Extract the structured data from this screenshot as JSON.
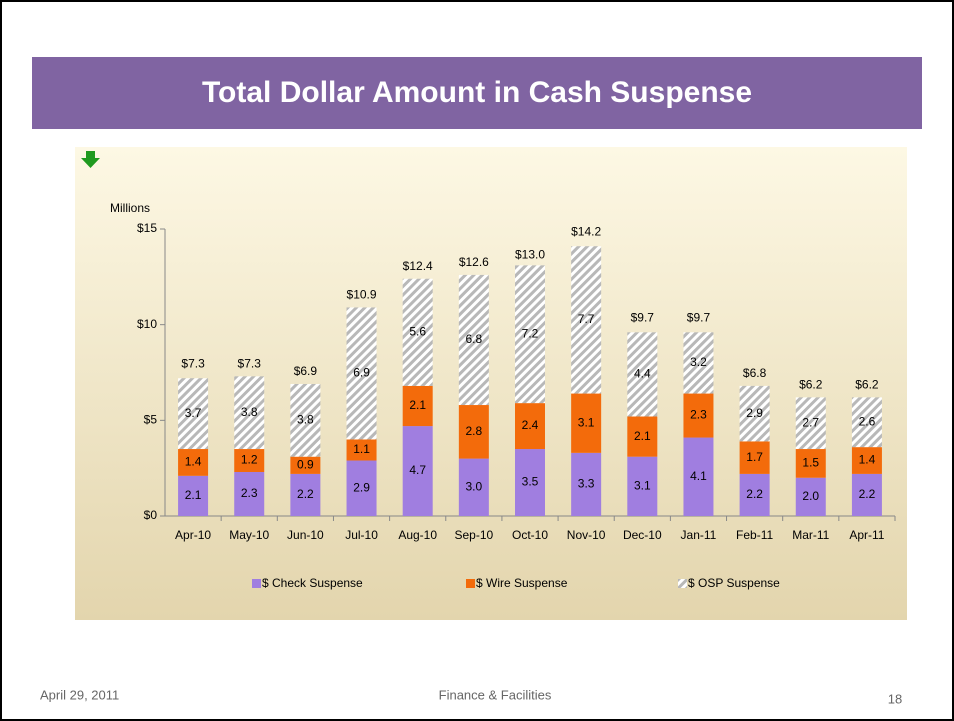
{
  "chart_data": {
    "type": "stacked-bar",
    "title": "Total Dollar Amount in Cash Suspense",
    "y_axis_label": "Millions",
    "categories": [
      "Apr-10",
      "May-10",
      "Jun-10",
      "Jul-10",
      "Aug-10",
      "Sep-10",
      "Oct-10",
      "Nov-10",
      "Dec-10",
      "Jan-11",
      "Feb-11",
      "Mar-11",
      "Apr-11"
    ],
    "series": [
      {
        "name": "$ Check Suspense",
        "color": "#a07ee0",
        "values": [
          2.1,
          2.3,
          2.2,
          2.9,
          4.7,
          3.0,
          3.5,
          3.3,
          3.1,
          4.1,
          2.2,
          2.0,
          2.2
        ],
        "value_labels": [
          "2.1",
          "2.3",
          "2.2",
          "2.9",
          "4.7",
          "3.0",
          "3.5",
          "3.3",
          "3.1",
          "4.1",
          "2.2",
          "2.0",
          "2.2"
        ]
      },
      {
        "name": "$ Wire Suspense",
        "color": "#f36b0b",
        "values": [
          1.4,
          1.2,
          0.9,
          1.1,
          2.1,
          2.8,
          2.4,
          3.1,
          2.1,
          2.3,
          1.7,
          1.5,
          1.4
        ],
        "value_labels": [
          "1.4",
          "1.2",
          "0.9",
          "1.1",
          "2.1",
          "2.8",
          "2.4",
          "3.1",
          "2.1",
          "2.3",
          "1.7",
          "1.5",
          "1.4"
        ]
      },
      {
        "name": "$ OSP Suspense",
        "color": "#b8b8b8",
        "pattern": "hatch",
        "values": [
          3.7,
          3.8,
          3.8,
          6.9,
          5.6,
          6.8,
          7.2,
          7.7,
          4.4,
          3.2,
          2.9,
          2.7,
          2.6
        ],
        "value_labels": [
          "3.7",
          "3.8",
          "3.8",
          "6.9",
          "5.6",
          "6.8",
          "7.2",
          "7.7",
          "4.4",
          "3.2",
          "2.9",
          "2.7",
          "2.6"
        ]
      }
    ],
    "totals": [
      7.3,
      7.3,
      6.9,
      10.9,
      12.4,
      12.6,
      13.0,
      14.2,
      9.7,
      9.7,
      6.8,
      6.2,
      6.2
    ],
    "total_labels": [
      "$7.3",
      "$7.3",
      "$6.9",
      "$10.9",
      "$12.4",
      "$12.6",
      "$13.0",
      "$14.2",
      "$9.7",
      "$9.7",
      "$6.8",
      "$6.2",
      "$6.2"
    ],
    "ylim": [
      0,
      15
    ],
    "yticks": [
      {
        "value": 0,
        "label": "$0"
      },
      {
        "value": 5,
        "label": "$5"
      },
      {
        "value": 10,
        "label": "$10"
      },
      {
        "value": 15,
        "label": "$15"
      }
    ],
    "legend": "bottom"
  },
  "footer": {
    "date": "April 29, 2011",
    "center": "Finance & Facilities",
    "page": "18"
  }
}
